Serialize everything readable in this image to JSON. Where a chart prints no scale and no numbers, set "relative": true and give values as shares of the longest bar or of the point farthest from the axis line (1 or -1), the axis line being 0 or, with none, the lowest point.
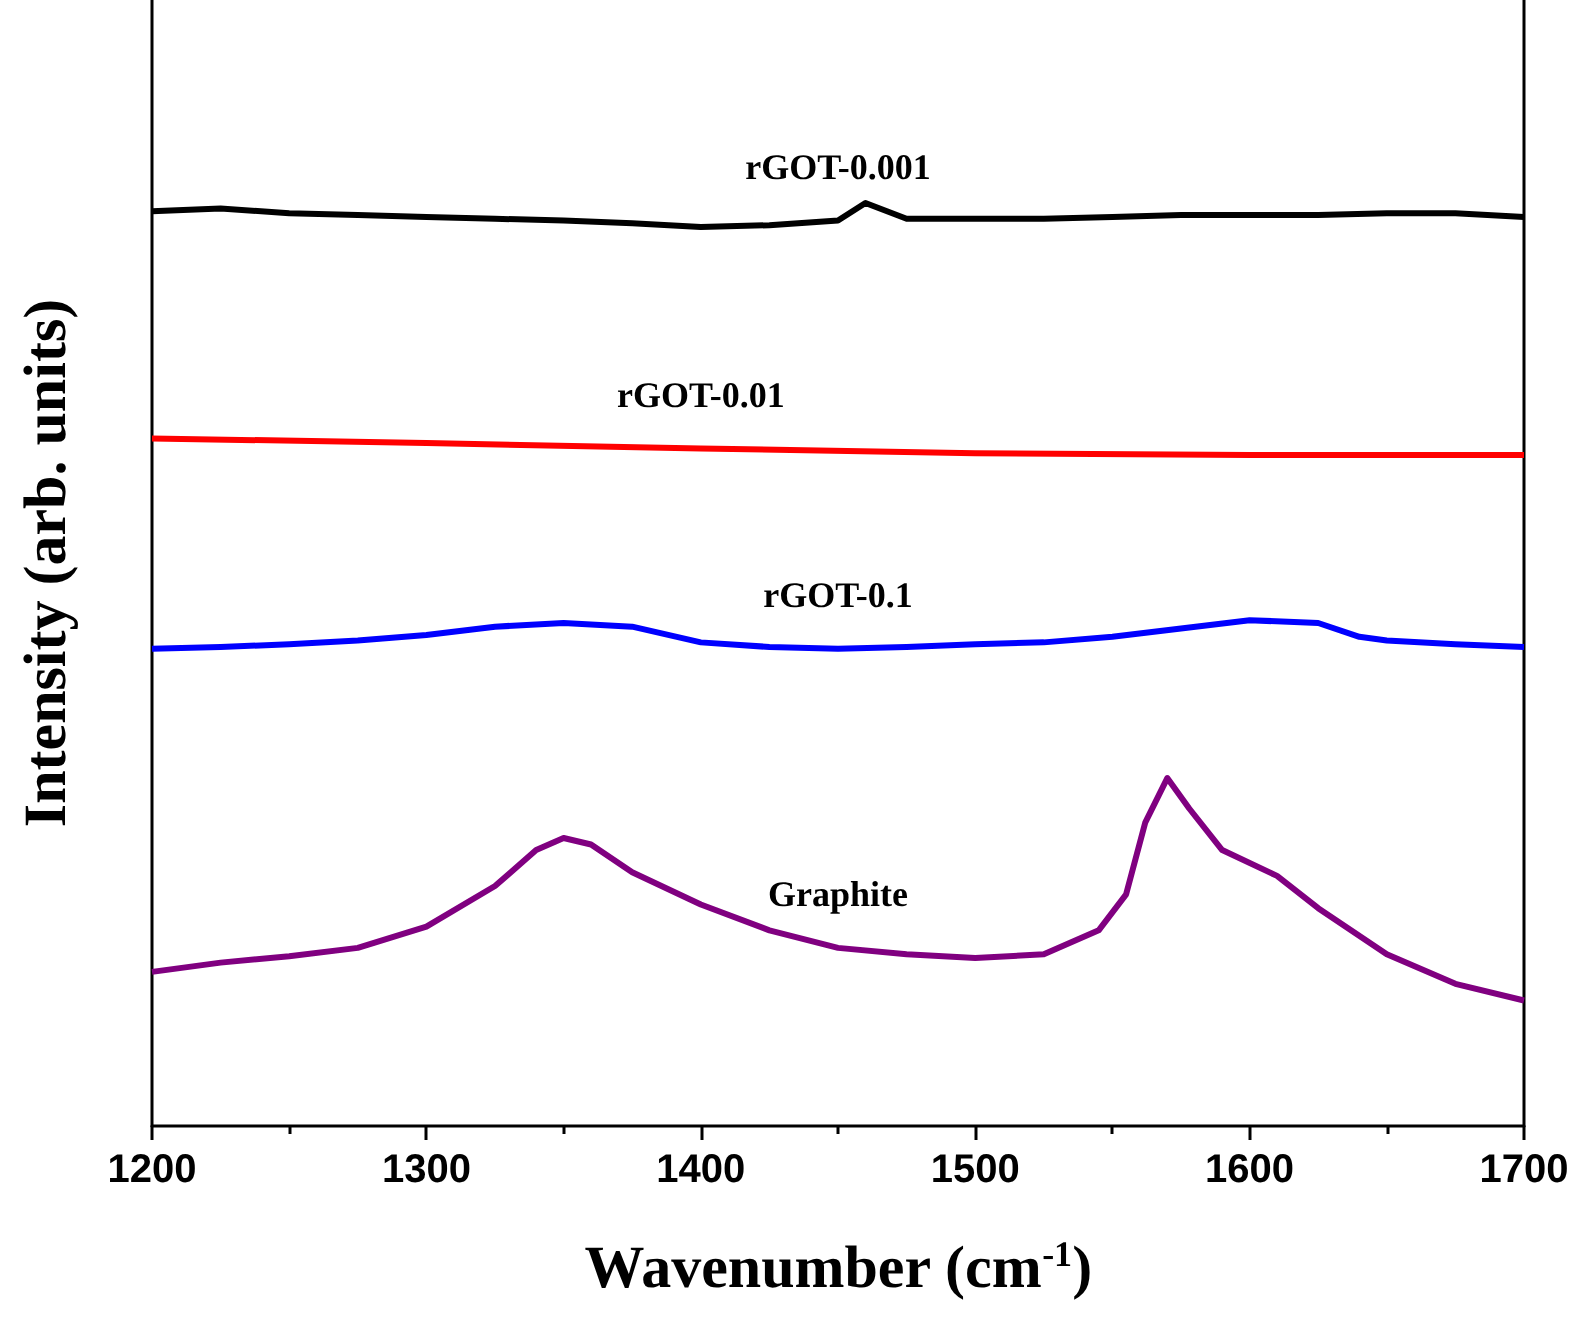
{
  "chart_data": {
    "type": "line",
    "relative": true,
    "xlabel": "Wavenumber (cm$^{-1}$)",
    "ylabel": "Intensity (arb. units)",
    "xlim": [
      1200,
      1700
    ],
    "xticks": [
      1200,
      1300,
      1400,
      1500,
      1600,
      1700
    ],
    "grid": false,
    "legend": false,
    "marker": "none",
    "line_style": "solid",
    "series": [
      {
        "name": "rGOT-0.001",
        "color": "#000000",
        "x": [
          1200,
          1225,
          1250,
          1275,
          1300,
          1325,
          1350,
          1375,
          1400,
          1425,
          1450,
          1460,
          1475,
          1500,
          1525,
          1550,
          1575,
          1600,
          1625,
          1650,
          1675,
          1700
        ],
        "values": [
          0.991,
          0.994,
          0.989,
          0.987,
          0.985,
          0.983,
          0.981,
          0.978,
          0.974,
          0.976,
          0.981,
          1.0,
          0.983,
          0.983,
          0.983,
          0.985,
          0.987,
          0.987,
          0.987,
          0.989,
          0.989,
          0.985
        ]
      },
      {
        "name": "rGOT-0.01",
        "color": "#ff0000",
        "x": [
          1200,
          1300,
          1400,
          1500,
          1600,
          1700
        ],
        "values": [
          0.745,
          0.74,
          0.734,
          0.729,
          0.727,
          0.727
        ]
      },
      {
        "name": "rGOT-0.1",
        "color": "#0000ff",
        "x": [
          1200,
          1225,
          1250,
          1275,
          1300,
          1325,
          1350,
          1375,
          1400,
          1425,
          1450,
          1475,
          1500,
          1525,
          1550,
          1575,
          1600,
          1625,
          1640,
          1650,
          1675,
          1700
        ],
        "values": [
          0.517,
          0.519,
          0.522,
          0.526,
          0.532,
          0.541,
          0.545,
          0.541,
          0.524,
          0.519,
          0.517,
          0.519,
          0.522,
          0.524,
          0.53,
          0.539,
          0.548,
          0.545,
          0.53,
          0.526,
          0.522,
          0.519
        ]
      },
      {
        "name": "Graphite",
        "color": "#800080",
        "x": [
          1200,
          1225,
          1250,
          1275,
          1300,
          1325,
          1340,
          1350,
          1360,
          1375,
          1400,
          1425,
          1450,
          1475,
          1500,
          1525,
          1545,
          1555,
          1562,
          1570,
          1578,
          1590,
          1610,
          1625,
          1650,
          1675,
          1700
        ],
        "values": [
          0.167,
          0.177,
          0.184,
          0.193,
          0.216,
          0.26,
          0.299,
          0.312,
          0.305,
          0.275,
          0.24,
          0.212,
          0.193,
          0.186,
          0.182,
          0.186,
          0.212,
          0.251,
          0.329,
          0.377,
          0.344,
          0.299,
          0.271,
          0.236,
          0.186,
          0.154,
          0.136
        ]
      }
    ]
  }
}
